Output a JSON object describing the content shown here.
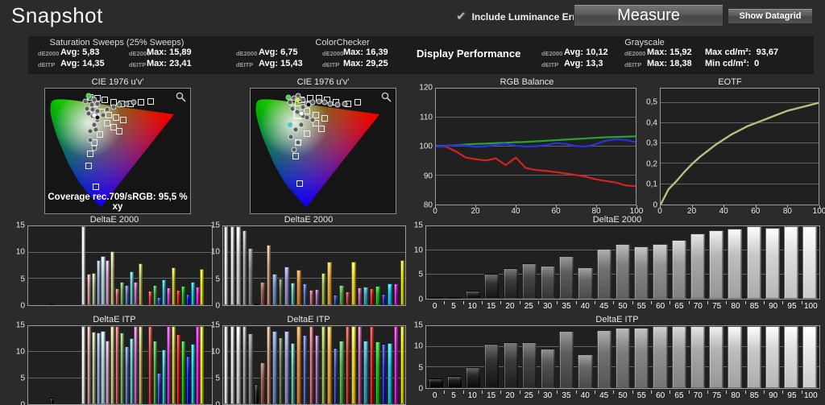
{
  "header": {
    "title": "Snapshot",
    "checkbox_label": "Include Luminance Error",
    "checkbox_checked": true,
    "measure_label": "Measure",
    "datagrid_label": "Show Datagrid"
  },
  "stats": {
    "saturation": {
      "title": "Saturation Sweeps (25% Sweeps)",
      "rows": [
        {
          "metric": "dE2000",
          "avg": "Avg: 5,83",
          "max": "Max: 15,89"
        },
        {
          "metric": "dEITP",
          "avg": "Avg: 14,35",
          "max": "Max: 23,41"
        }
      ]
    },
    "colorchecker": {
      "title": "ColorChecker",
      "rows": [
        {
          "metric": "dE2000",
          "avg": "Avg: 6,75",
          "max": "Max: 16,39"
        },
        {
          "metric": "dEITP",
          "avg": "Avg: 15,43",
          "max": "Max: 29,25"
        }
      ]
    },
    "display_performance_label": "Display Performance",
    "grayscale": {
      "title": "Grayscale",
      "rows": [
        {
          "metric": "dE2000",
          "avg": "Avg: 10,12",
          "max": "Max: 15,92"
        },
        {
          "metric": "dEITP",
          "avg": "Avg: 13,3",
          "max": "Max: 18,38"
        }
      ],
      "lum": [
        {
          "label": "Max cd/m²:",
          "value": "93,67"
        },
        {
          "label": "Min cd/m²:",
          "value": "0"
        }
      ]
    }
  },
  "chart_data": [
    {
      "id": "cie_1",
      "type": "scatter",
      "title": "CIE 1976 u'v'",
      "footer": "Coverage rec.709/sRGB:  95,5 % xy",
      "targets": [
        [
          31,
          7
        ],
        [
          36,
          8
        ],
        [
          41,
          9
        ],
        [
          47,
          11
        ],
        [
          53,
          12
        ],
        [
          59,
          12
        ],
        [
          66,
          11
        ],
        [
          73,
          10
        ],
        [
          34,
          17
        ],
        [
          39,
          19
        ],
        [
          44,
          21
        ],
        [
          49,
          23
        ],
        [
          54,
          25
        ],
        [
          43,
          28
        ],
        [
          47,
          31
        ],
        [
          51,
          34
        ],
        [
          38,
          37
        ],
        [
          34,
          43
        ],
        [
          31,
          52
        ],
        [
          30,
          62
        ],
        [
          35,
          79
        ]
      ],
      "points": [
        [
          28,
          10
        ],
        [
          31,
          8
        ],
        [
          34,
          9
        ],
        [
          36,
          12
        ],
        [
          32,
          13
        ],
        [
          29,
          16
        ],
        [
          33,
          17
        ],
        [
          36,
          18
        ],
        [
          30,
          20
        ],
        [
          33,
          22
        ],
        [
          36,
          25
        ],
        [
          40,
          21
        ],
        [
          43,
          17
        ],
        [
          47,
          15
        ],
        [
          51,
          13
        ],
        [
          56,
          12
        ],
        [
          61,
          11
        ],
        [
          34,
          29
        ],
        [
          31,
          34
        ],
        [
          35,
          33
        ],
        [
          31,
          41
        ],
        [
          34,
          48
        ],
        [
          34,
          21,
          "white"
        ],
        [
          36,
          23,
          "black"
        ],
        [
          30,
          6,
          "green"
        ]
      ]
    },
    {
      "id": "cie_2",
      "type": "scatter",
      "title": "CIE 1976 u'v'",
      "footer": null,
      "targets": [
        [
          29,
          11
        ],
        [
          35,
          9
        ],
        [
          41,
          8
        ],
        [
          47,
          8
        ],
        [
          53,
          9
        ],
        [
          59,
          11
        ],
        [
          67,
          12
        ],
        [
          74,
          11
        ],
        [
          33,
          16
        ],
        [
          39,
          18
        ],
        [
          45,
          21
        ],
        [
          51,
          24
        ],
        [
          45,
          28
        ],
        [
          49,
          32
        ],
        [
          39,
          36
        ],
        [
          33,
          43
        ],
        [
          31,
          54
        ],
        [
          34,
          76
        ],
        [
          33,
          21,
          "bold"
        ]
      ],
      "points": [
        [
          27,
          11
        ],
        [
          30,
          8
        ],
        [
          33,
          6
        ],
        [
          36,
          9
        ],
        [
          39,
          12
        ],
        [
          43,
          11
        ],
        [
          47,
          10
        ],
        [
          51,
          11
        ],
        [
          55,
          12
        ],
        [
          60,
          13
        ],
        [
          65,
          12
        ],
        [
          29,
          16
        ],
        [
          32,
          19
        ],
        [
          36,
          22
        ],
        [
          39,
          23
        ],
        [
          43,
          25
        ],
        [
          35,
          29
        ],
        [
          31,
          33
        ],
        [
          28,
          39
        ],
        [
          33,
          43
        ],
        [
          30,
          49
        ],
        [
          36,
          15
        ],
        [
          40,
          13,
          "black"
        ],
        [
          26,
          7,
          "green"
        ],
        [
          27,
          29,
          "cyan"
        ],
        [
          32,
          9,
          "yellow"
        ],
        [
          35,
          20,
          "white"
        ]
      ]
    },
    {
      "id": "rgb_balance",
      "type": "line",
      "title": "RGB Balance",
      "xlim": [
        0,
        100
      ],
      "ylim": [
        80,
        120
      ],
      "yticks": [
        80,
        90,
        100,
        110,
        120
      ],
      "ytick_labels": [
        "80",
        "90",
        "100",
        "110",
        "120"
      ],
      "xticks": [
        0,
        20,
        40,
        60,
        80,
        100
      ],
      "xtick_labels": [
        "0",
        "20",
        "40",
        "60",
        "80",
        "100"
      ],
      "x": [
        0,
        5,
        10,
        15,
        20,
        25,
        30,
        35,
        40,
        45,
        50,
        55,
        60,
        65,
        70,
        75,
        80,
        85,
        90,
        95,
        100
      ],
      "series": [
        {
          "name": "red",
          "color": "#d42222",
          "width": 2.2,
          "values": [
            100,
            100,
            98.3,
            96.2,
            95.6,
            95.2,
            95.9,
            93.6,
            96.2,
            92.6,
            91.9,
            91.6,
            91.2,
            90.7,
            90.2,
            89.6,
            88.7,
            88.1,
            87.6,
            86.6,
            86.3
          ]
        },
        {
          "name": "green",
          "color": "#2aa22e",
          "width": 2.2,
          "values": [
            100.2,
            100.3,
            100.5,
            100.7,
            100.9,
            101.0,
            101.2,
            101.3,
            101.5,
            101.6,
            101.8,
            102.0,
            102.2,
            102.4,
            102.6,
            102.8,
            103.0,
            103.2,
            103.3,
            103.4,
            103.5
          ]
        },
        {
          "name": "blue",
          "color": "#2731e4",
          "width": 2.2,
          "values": [
            100,
            100.2,
            100.5,
            100.3,
            99.9,
            100.1,
            100.6,
            100.9,
            100.3,
            100.0,
            100.1,
            100.5,
            101.2,
            100.9,
            100.2,
            100.0,
            100.8,
            102.0,
            102.5,
            102.3,
            101.5
          ]
        }
      ]
    },
    {
      "id": "eotf",
      "type": "line",
      "title": "EOTF",
      "xlim": [
        0,
        100
      ],
      "ylim": [
        0,
        0.57
      ],
      "yticks": [
        0,
        0.1,
        0.2,
        0.3,
        0.4,
        0.5
      ],
      "ytick_labels": [
        "0",
        "0,1",
        "0,2",
        "0,3",
        "0,4",
        "0,5"
      ],
      "xticks": [
        0,
        20,
        40,
        60,
        80,
        100
      ],
      "xtick_labels": [
        "0",
        "20",
        "40",
        "60",
        "80",
        "100"
      ],
      "x": [
        0,
        5,
        10,
        15,
        20,
        25,
        30,
        35,
        40,
        45,
        50,
        55,
        60,
        65,
        70,
        75,
        80,
        85,
        90,
        95,
        100
      ],
      "series": [
        {
          "name": "reference",
          "color": "#92928a",
          "width": 2.6,
          "values": [
            0,
            0.075,
            0.115,
            0.16,
            0.2,
            0.235,
            0.265,
            0.295,
            0.32,
            0.345,
            0.365,
            0.385,
            0.4,
            0.415,
            0.43,
            0.445,
            0.46,
            0.47,
            0.48,
            0.49,
            0.5
          ]
        },
        {
          "name": "measured",
          "color": "#cfcf6a",
          "width": 1.3,
          "values": [
            0,
            0.075,
            0.115,
            0.16,
            0.2,
            0.235,
            0.265,
            0.295,
            0.32,
            0.345,
            0.365,
            0.385,
            0.4,
            0.415,
            0.43,
            0.445,
            0.46,
            0.47,
            0.48,
            0.49,
            0.5
          ]
        }
      ]
    },
    {
      "id": "de2000_sweeps",
      "type": "bar",
      "title": "DeltaE 2000",
      "ylim": [
        0,
        15
      ],
      "yticks": [
        0,
        5,
        10,
        15
      ],
      "barw": 0.022,
      "groups": [
        {
          "start": 0.12,
          "step": 0,
          "colors": [
            "#151515"
          ],
          "values": [
            0.25
          ]
        },
        {
          "start": 0.29,
          "step": 0,
          "colors": [
            "#f8f8f8"
          ],
          "values": [
            15.9
          ]
        },
        {
          "start": 0.321,
          "step": 0.0253,
          "colors": [
            "#d09292",
            "#a4c693",
            "#99a3d1",
            "#a9cdd8",
            "#d4a0c0",
            "#cccc8e"
          ],
          "values": [
            5.9,
            6.2,
            8.5,
            9.3,
            8.6,
            10.3
          ]
        },
        {
          "start": 0.475,
          "step": 0.0253,
          "colors": [
            "#c25d5d",
            "#6cae60",
            "#6877c2",
            "#5fb9c6",
            "#bc68b6",
            "#baba5c"
          ],
          "values": [
            3.2,
            4.5,
            3.9,
            6.4,
            4.5,
            7.9
          ]
        },
        {
          "start": 0.653,
          "step": 0.0253,
          "colors": [
            "#cc3838",
            "#3da63d",
            "#3e3ecd",
            "#32b9cd",
            "#c535c5",
            "#c3c330"
          ],
          "values": [
            2.8,
            3.8,
            1.5,
            4.9,
            3.4,
            7.2
          ]
        },
        {
          "start": 0.809,
          "step": 0.0253,
          "colors": [
            "#e21616",
            "#14b614",
            "#1414e8",
            "#0ec9de",
            "#e612e6",
            "#e8e80e"
          ],
          "values": [
            2.9,
            3.7,
            2.1,
            4.5,
            3.5,
            6.9
          ]
        }
      ]
    },
    {
      "id": "deitp_sweeps",
      "type": "bar",
      "title": "DeltaE ITP",
      "ylim": [
        0,
        15
      ],
      "yticks": [
        0,
        5,
        10,
        15
      ],
      "barw": 0.022,
      "groups": [
        {
          "start": 0.12,
          "step": 0,
          "colors": [
            "#151515"
          ],
          "values": [
            1.2
          ]
        },
        {
          "start": 0.29,
          "step": 0,
          "colors": [
            "#f8f8f8"
          ],
          "values": [
            15.9
          ]
        },
        {
          "start": 0.321,
          "step": 0.0253,
          "colors": [
            "#d09292",
            "#a4c693",
            "#99a3d1",
            "#a9cdd8",
            "#d4a0c0",
            "#cccc8e"
          ],
          "values": [
            15.9,
            13.9,
            13.8,
            14.1,
            12.2,
            15.9
          ]
        },
        {
          "start": 0.475,
          "step": 0.0253,
          "colors": [
            "#c25d5d",
            "#6cae60",
            "#6877c2",
            "#5fb9c6",
            "#bc68b6",
            "#baba5c"
          ],
          "values": [
            15.9,
            13.8,
            11.2,
            12.7,
            15.9,
            15.9
          ]
        },
        {
          "start": 0.653,
          "step": 0.0253,
          "colors": [
            "#cc3838",
            "#3da63d",
            "#3e3ecd",
            "#32b9cd",
            "#c535c5",
            "#c3c330"
          ],
          "values": [
            15.9,
            12.2,
            6.1,
            10.5,
            15.9,
            15.9
          ]
        },
        {
          "start": 0.809,
          "step": 0.0253,
          "colors": [
            "#e21616",
            "#14b614",
            "#1414e8",
            "#0ec9de",
            "#e612e6",
            "#e8e80e"
          ],
          "values": [
            13.4,
            12.2,
            9.3,
            11.6,
            15.9,
            15.9
          ]
        }
      ]
    },
    {
      "id": "de2000_colorchecker",
      "type": "bar",
      "title": "DeltaE 2000",
      "ylim": [
        0,
        15
      ],
      "yticks": [
        0,
        5,
        10,
        15
      ],
      "even": true,
      "colors": [
        "#f4f4f4",
        "#e8e8e8",
        "#cccccc",
        "#a2a2a2",
        "#7c7c7c",
        "#1a1a1a",
        "#8d5b4c",
        "#c8977a",
        "#6f8bb5",
        "#637a4e",
        "#8f8ec4",
        "#5fbdb0",
        "#d6863a",
        "#5666b4",
        "#c96a78",
        "#9a6aa8",
        "#9ebd4a",
        "#e2a33c",
        "#3b4ba8",
        "#4aa64a",
        "#c33b3b",
        "#e8ce30",
        "#c05a9a",
        "#3aa0b8",
        "#e02020",
        "#20b020",
        "#2828e0",
        "#18c0d8",
        "#d818d8",
        "#e0e018"
      ],
      "values": [
        15.9,
        15.9,
        15.9,
        14.2,
        10.8,
        0.15,
        4.4,
        11.5,
        5.9,
        5.1,
        7.4,
        4.3,
        6.8,
        4.2,
        2.9,
        3.1,
        6.1,
        8.3,
        2.0,
        3.8,
        2.6,
        8.3,
        3.4,
        3.5,
        3.2,
        3.6,
        2.2,
        4.1,
        4.1,
        8.5
      ]
    },
    {
      "id": "deitp_colorchecker",
      "type": "bar",
      "title": "DeltaE ITP",
      "ylim": [
        0,
        15
      ],
      "yticks": [
        0,
        5,
        10,
        15
      ],
      "even": true,
      "colors": [
        "#f4f4f4",
        "#e8e8e8",
        "#cccccc",
        "#a2a2a2",
        "#7c7c7c",
        "#1a1a1a",
        "#8d5b4c",
        "#c8977a",
        "#6f8bb5",
        "#637a4e",
        "#8f8ec4",
        "#5fbdb0",
        "#d6863a",
        "#5666b4",
        "#c96a78",
        "#9a6aa8",
        "#9ebd4a",
        "#e2a33c",
        "#3b4ba8",
        "#4aa64a",
        "#c33b3b",
        "#e8ce30",
        "#c05a9a",
        "#3aa0b8",
        "#e02020",
        "#20b020",
        "#2828e0",
        "#18c0d8",
        "#d818d8",
        "#e0e018"
      ],
      "values": [
        15.9,
        15.9,
        15.9,
        15.9,
        13.6,
        3.9,
        8.0,
        15.9,
        14.0,
        12.8,
        14.0,
        11.8,
        15.9,
        13.3,
        15.9,
        13.3,
        15.9,
        15.9,
        10.8,
        12.2,
        15.9,
        15.9,
        15.9,
        12.2,
        15.9,
        12.0,
        11.6,
        11.7,
        15.9,
        15.9
      ]
    },
    {
      "id": "de2000_grayscale",
      "type": "bar",
      "title": "DeltaE 2000",
      "ylim": [
        0,
        15
      ],
      "yticks": [
        0,
        5,
        10,
        15
      ],
      "grayscale_ramp": true,
      "categories": [
        "0",
        "5",
        "10",
        "15",
        "20",
        "25",
        "30",
        "35",
        "40",
        "45",
        "50",
        "55",
        "60",
        "65",
        "70",
        "75",
        "80",
        "85",
        "90",
        "95",
        "100"
      ],
      "values": [
        0.1,
        0.2,
        1.6,
        5.2,
        6.3,
        7.3,
        6.8,
        8.8,
        6.5,
        10.3,
        11.3,
        10.9,
        11.3,
        12.1,
        13.5,
        14.2,
        14.5,
        15.3,
        14.7,
        15.9,
        15.9
      ]
    },
    {
      "id": "deitp_grayscale",
      "type": "bar",
      "title": "DeltaE ITP",
      "ylim": [
        0,
        15
      ],
      "yticks": [
        0,
        5,
        10,
        15
      ],
      "grayscale_ramp": true,
      "categories": [
        "0",
        "5",
        "10",
        "15",
        "20",
        "25",
        "30",
        "35",
        "40",
        "45",
        "50",
        "55",
        "60",
        "65",
        "70",
        "75",
        "80",
        "85",
        "90",
        "95",
        "100"
      ],
      "values": [
        2.3,
        2.9,
        5.0,
        10.8,
        11.2,
        11.2,
        9.5,
        13.8,
        8.1,
        14.0,
        14.7,
        14.6,
        15.9,
        15.9,
        15.9,
        15.9,
        15.9,
        15.9,
        15.9,
        15.9,
        15.9
      ]
    }
  ]
}
